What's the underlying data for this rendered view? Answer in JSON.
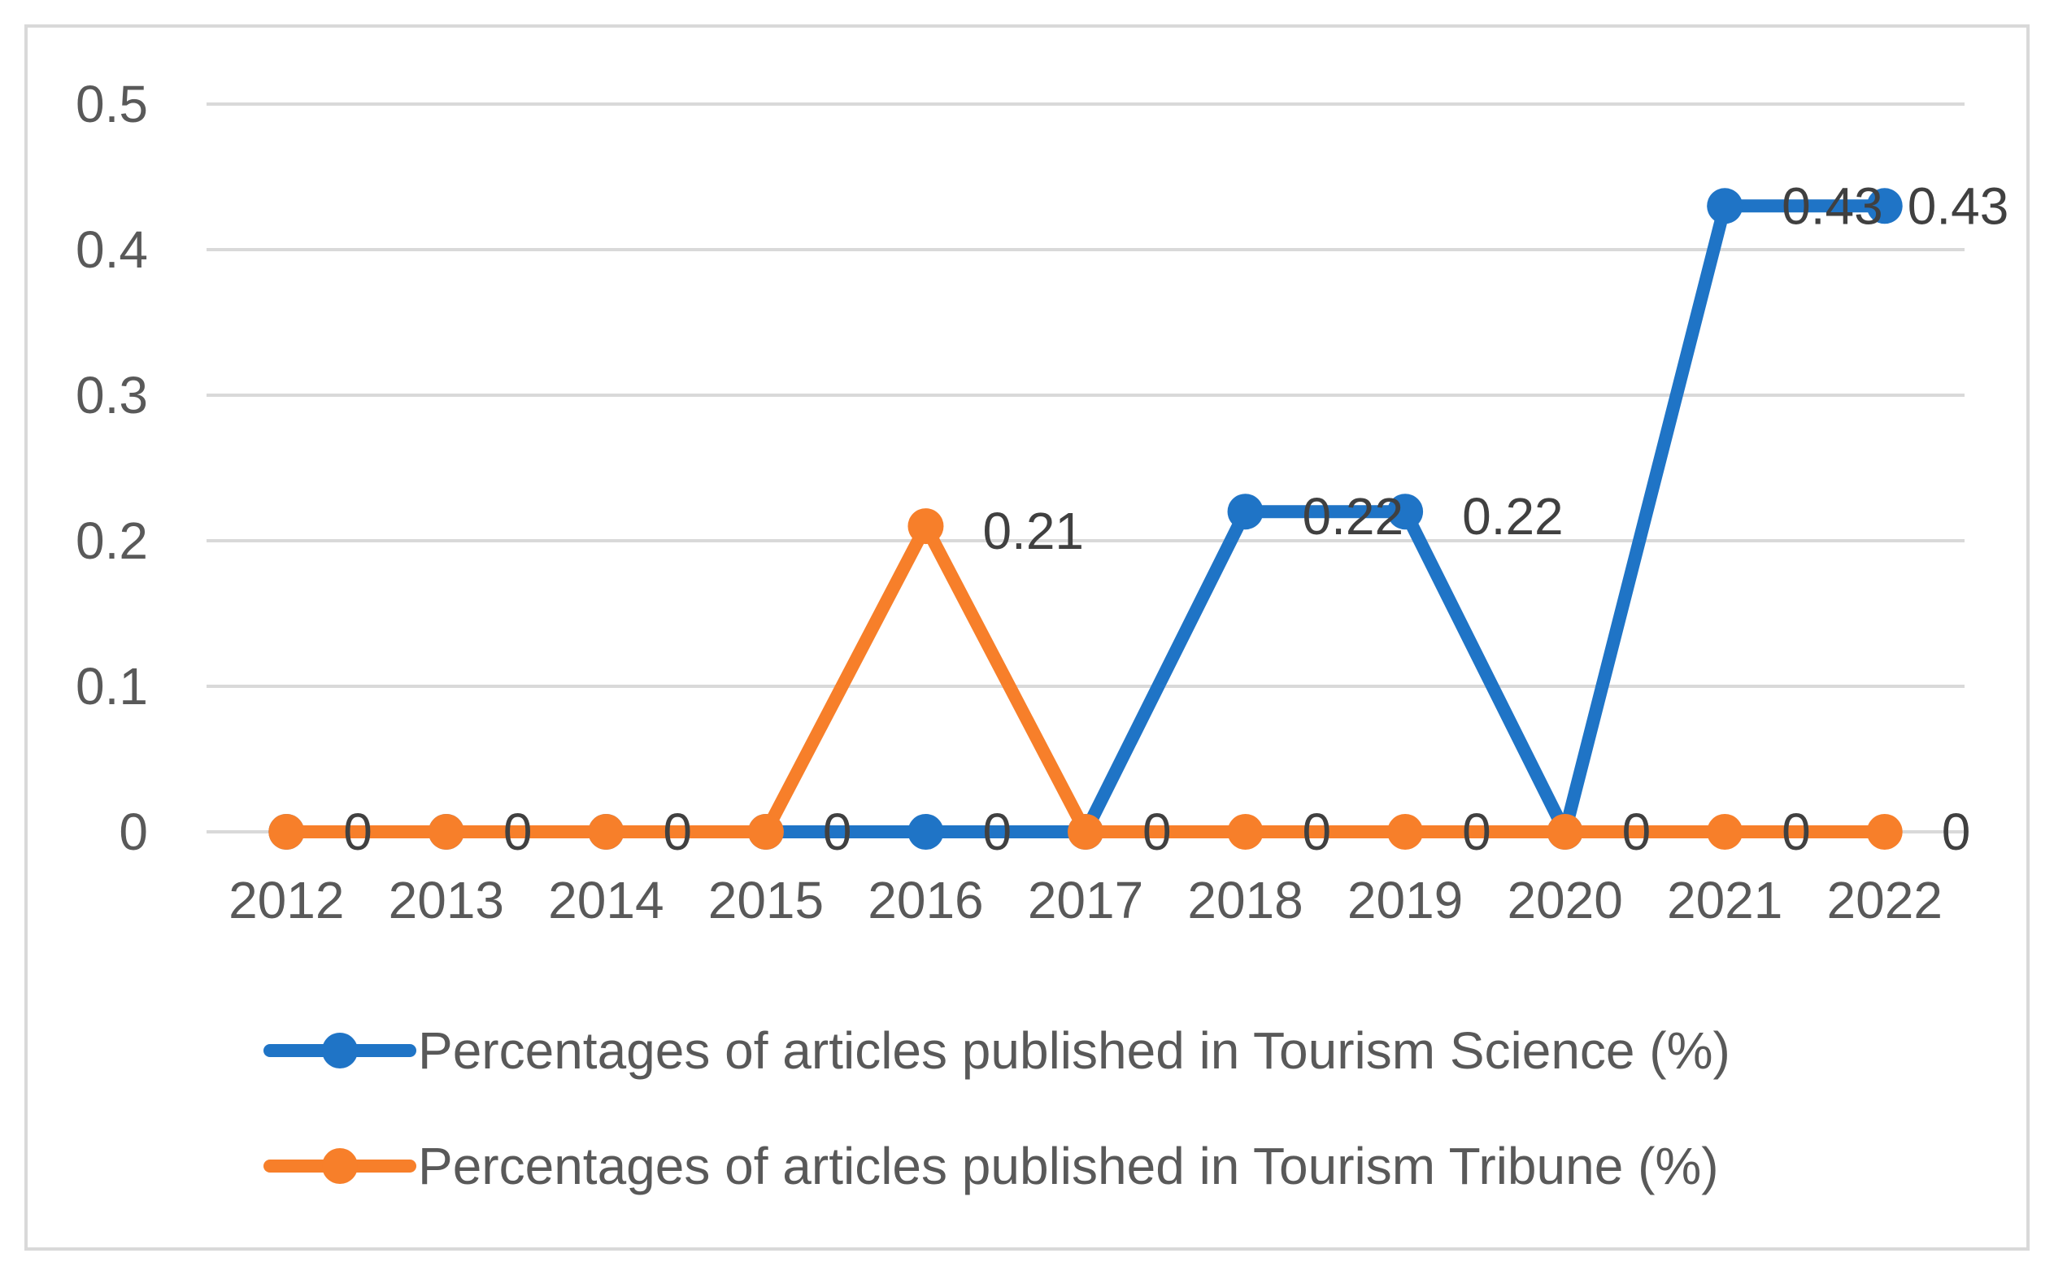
{
  "chart_data": {
    "type": "line",
    "categories": [
      "2012",
      "2013",
      "2014",
      "2015",
      "2016",
      "2017",
      "2018",
      "2019",
      "2020",
      "2021",
      "2022"
    ],
    "series": [
      {
        "name": "Percentages of articles published in Tourism Science (%)",
        "color": "#1f74c6",
        "values": [
          0,
          0,
          0,
          0,
          0,
          0,
          0.22,
          0.22,
          0,
          0.43,
          0.43
        ]
      },
      {
        "name": "Percentages of articles published in Tourism Tribune (%)",
        "color": "#f77f2a",
        "values": [
          0,
          0,
          0,
          0,
          0.21,
          0,
          0,
          0,
          0,
          0,
          0
        ]
      }
    ],
    "data_labels": [
      "0",
      "0",
      "0",
      "0",
      "0",
      "0",
      "0",
      "0",
      "0",
      "0",
      "0",
      "0.21",
      "0.22",
      "0.22",
      "0.43",
      "0.43"
    ],
    "y_ticks": [
      "0",
      "0.1",
      "0.2",
      "0.3",
      "0.4",
      "0.5"
    ],
    "ylim": [
      0,
      0.5
    ],
    "grid": true,
    "legend_position": "bottom",
    "title": "",
    "xlabel": "",
    "ylabel": ""
  },
  "colors": {
    "grid": "#d9d9d9",
    "axis_text": "#595959",
    "label_text": "#404040"
  }
}
